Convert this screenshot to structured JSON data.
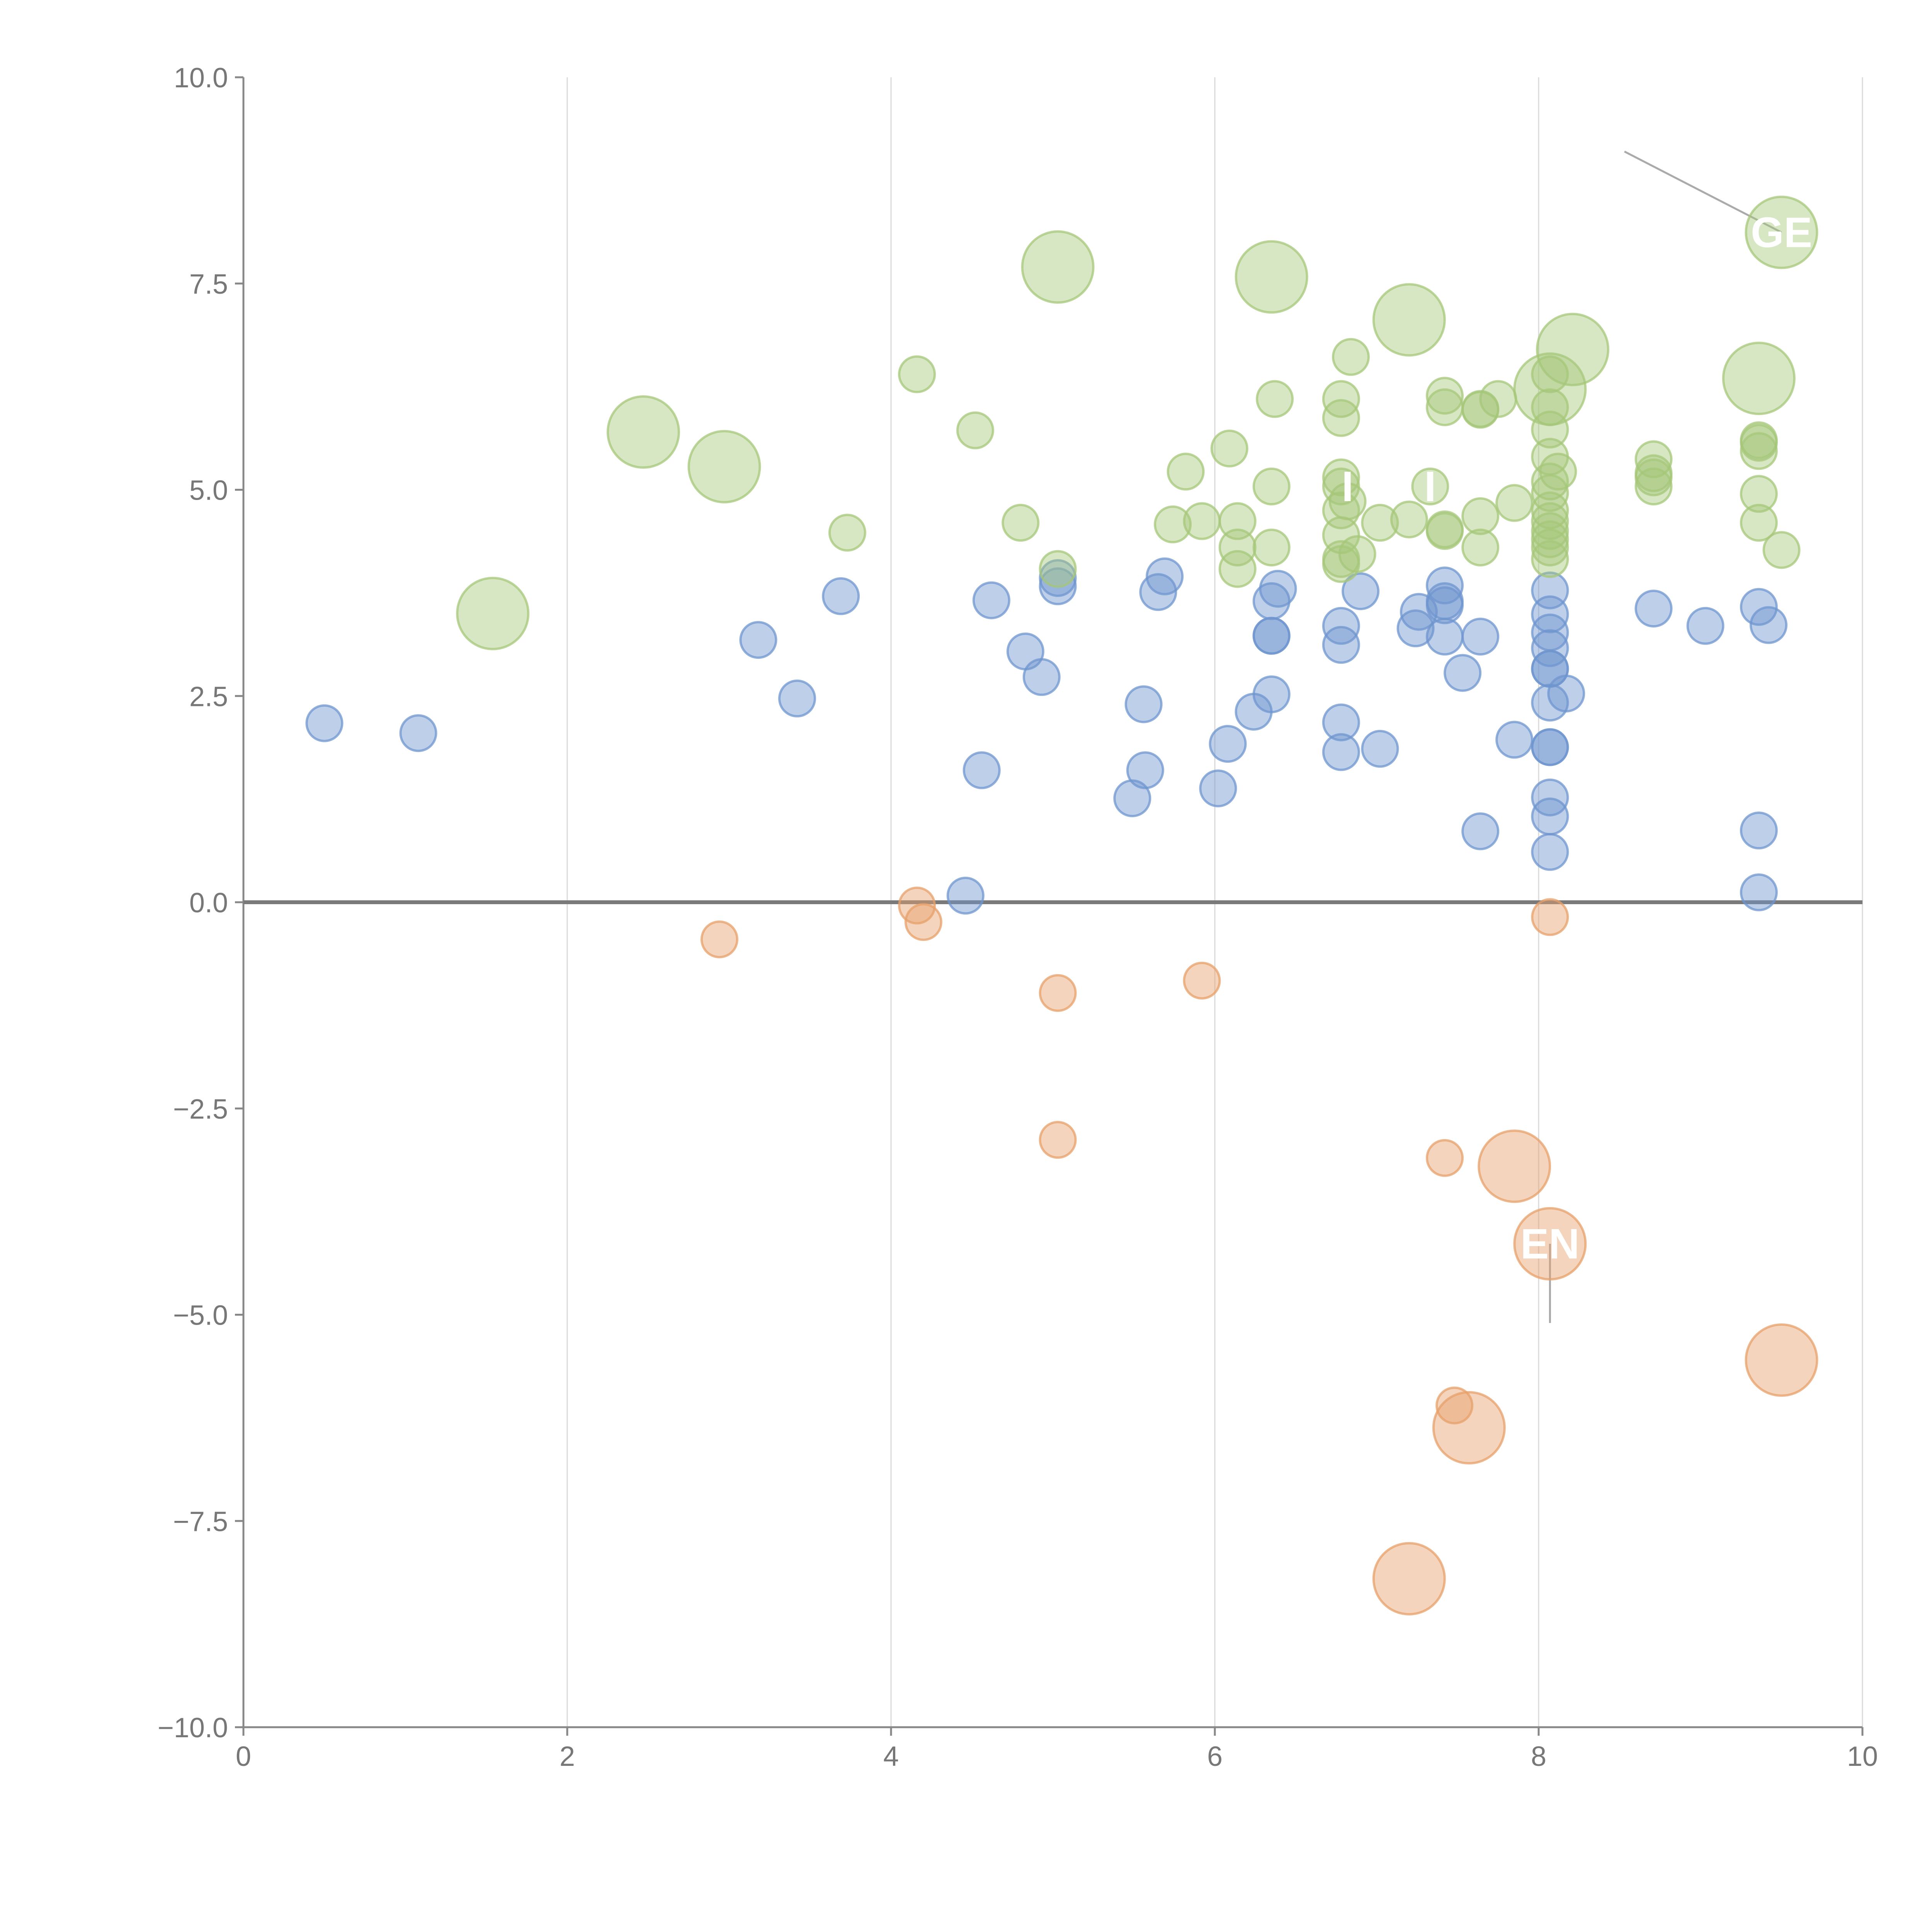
{
  "colors": {
    "blue": "#6f95cf",
    "green": "#a6c779",
    "orange": "#e7a06a",
    "grid": "#d9d9d9",
    "axis": "#888888"
  },
  "chart_data": {
    "type": "scatter",
    "title": "",
    "xlabel": "",
    "ylabel": "",
    "xlim": [
      0,
      10
    ],
    "ylim": [
      -10,
      10
    ],
    "x_ticks": [
      0,
      2,
      4,
      6,
      8,
      10
    ],
    "x_tick_labels": [
      "0",
      "2",
      "4",
      "6",
      "8",
      "10"
    ],
    "y_ticks": [
      10,
      7.5,
      5,
      2.5,
      0,
      -2.5,
      -5,
      -7.5,
      -10
    ],
    "y_tick_labels": [
      "10.0",
      "7.5",
      "5.0",
      "2.5",
      "0.0",
      "−2.5",
      "−5.0",
      "−7.5",
      "−10.0"
    ],
    "grid": "vertical",
    "zero_line": 0,
    "series": [
      {
        "name": "blue",
        "color": "#6f95cf",
        "points": [
          {
            "x": 0.5,
            "y": 2.17,
            "r": 1
          },
          {
            "x": 1.08,
            "y": 2.05,
            "r": 1
          },
          {
            "x": 3.18,
            "y": 3.18,
            "r": 1
          },
          {
            "x": 3.42,
            "y": 2.47,
            "r": 1
          },
          {
            "x": 3.69,
            "y": 3.71,
            "r": 1
          },
          {
            "x": 4.46,
            "y": 0.08,
            "r": 1
          },
          {
            "x": 4.56,
            "y": 1.6,
            "r": 1
          },
          {
            "x": 4.62,
            "y": 3.66,
            "r": 1
          },
          {
            "x": 4.83,
            "y": 3.04,
            "r": 1
          },
          {
            "x": 4.93,
            "y": 2.73,
            "r": 1
          },
          {
            "x": 5.03,
            "y": 3.83,
            "r": 1
          },
          {
            "x": 5.03,
            "y": 3.93,
            "r": 1
          },
          {
            "x": 5.49,
            "y": 1.26,
            "r": 1
          },
          {
            "x": 5.56,
            "y": 2.4,
            "r": 1
          },
          {
            "x": 5.57,
            "y": 1.6,
            "r": 1
          },
          {
            "x": 5.65,
            "y": 3.76,
            "r": 1
          },
          {
            "x": 5.69,
            "y": 3.95,
            "r": 1
          },
          {
            "x": 6.02,
            "y": 1.38,
            "r": 1
          },
          {
            "x": 6.08,
            "y": 1.92,
            "r": 1
          },
          {
            "x": 6.24,
            "y": 2.31,
            "r": 1
          },
          {
            "x": 6.35,
            "y": 2.52,
            "r": 1
          },
          {
            "x": 6.35,
            "y": 3.23,
            "r": 1
          },
          {
            "x": 6.35,
            "y": 3.23,
            "r": 1
          },
          {
            "x": 6.35,
            "y": 3.65,
            "r": 1
          },
          {
            "x": 6.39,
            "y": 3.8,
            "r": 1
          },
          {
            "x": 6.78,
            "y": 1.82,
            "r": 1
          },
          {
            "x": 6.78,
            "y": 2.18,
            "r": 1
          },
          {
            "x": 6.78,
            "y": 3.12,
            "r": 1
          },
          {
            "x": 6.78,
            "y": 3.35,
            "r": 1
          },
          {
            "x": 6.9,
            "y": 3.77,
            "r": 1
          },
          {
            "x": 7.02,
            "y": 1.86,
            "r": 1
          },
          {
            "x": 7.24,
            "y": 3.32,
            "r": 1
          },
          {
            "x": 7.26,
            "y": 3.52,
            "r": 1
          },
          {
            "x": 7.42,
            "y": 3.22,
            "r": 1
          },
          {
            "x": 7.42,
            "y": 3.6,
            "r": 1
          },
          {
            "x": 7.42,
            "y": 3.65,
            "r": 1
          },
          {
            "x": 7.42,
            "y": 3.84,
            "r": 1
          },
          {
            "x": 7.53,
            "y": 2.78,
            "r": 1
          },
          {
            "x": 7.64,
            "y": 0.86,
            "r": 1
          },
          {
            "x": 7.64,
            "y": 3.22,
            "r": 1
          },
          {
            "x": 7.85,
            "y": 1.97,
            "r": 1
          },
          {
            "x": 8.07,
            "y": 0.61,
            "r": 1
          },
          {
            "x": 8.07,
            "y": 1.04,
            "r": 1
          },
          {
            "x": 8.07,
            "y": 1.27,
            "r": 1
          },
          {
            "x": 8.07,
            "y": 1.88,
            "r": 1
          },
          {
            "x": 8.07,
            "y": 1.88,
            "r": 1
          },
          {
            "x": 8.07,
            "y": 2.42,
            "r": 1
          },
          {
            "x": 8.07,
            "y": 2.83,
            "r": 1
          },
          {
            "x": 8.07,
            "y": 2.83,
            "r": 1
          },
          {
            "x": 8.07,
            "y": 3.08,
            "r": 1
          },
          {
            "x": 8.07,
            "y": 3.27,
            "r": 1
          },
          {
            "x": 8.07,
            "y": 3.49,
            "r": 1
          },
          {
            "x": 8.07,
            "y": 3.78,
            "r": 1
          },
          {
            "x": 8.17,
            "y": 2.53,
            "r": 1
          },
          {
            "x": 8.71,
            "y": 3.56,
            "r": 1
          },
          {
            "x": 9.03,
            "y": 3.35,
            "r": 1
          },
          {
            "x": 9.36,
            "y": 0.12,
            "r": 1
          },
          {
            "x": 9.36,
            "y": 0.87,
            "r": 1
          },
          {
            "x": 9.36,
            "y": 3.58,
            "r": 1
          },
          {
            "x": 9.42,
            "y": 3.36,
            "r": 1
          }
        ]
      },
      {
        "name": "green",
        "color": "#a6c779",
        "points": [
          {
            "x": 1.54,
            "y": 3.5,
            "r": 2
          },
          {
            "x": 2.47,
            "y": 5.7,
            "r": 2
          },
          {
            "x": 2.97,
            "y": 5.28,
            "r": 2
          },
          {
            "x": 3.73,
            "y": 4.48,
            "r": 1
          },
          {
            "x": 4.16,
            "y": 6.4,
            "r": 1
          },
          {
            "x": 4.52,
            "y": 5.72,
            "r": 1
          },
          {
            "x": 4.8,
            "y": 4.6,
            "r": 1
          },
          {
            "x": 5.03,
            "y": 7.7,
            "r": 2
          },
          {
            "x": 5.03,
            "y": 4.04,
            "r": 1
          },
          {
            "x": 5.74,
            "y": 4.58,
            "r": 1
          },
          {
            "x": 5.82,
            "y": 5.22,
            "r": 1
          },
          {
            "x": 5.92,
            "y": 4.62,
            "r": 1
          },
          {
            "x": 6.09,
            "y": 5.5,
            "r": 1
          },
          {
            "x": 6.14,
            "y": 4.04,
            "r": 1
          },
          {
            "x": 6.14,
            "y": 4.3,
            "r": 1
          },
          {
            "x": 6.14,
            "y": 4.62,
            "r": 1
          },
          {
            "x": 6.35,
            "y": 7.58,
            "r": 2
          },
          {
            "x": 6.35,
            "y": 4.3,
            "r": 1
          },
          {
            "x": 6.35,
            "y": 5.04,
            "r": 1
          },
          {
            "x": 6.37,
            "y": 6.1,
            "r": 1
          },
          {
            "x": 6.78,
            "y": 4.1,
            "r": 1
          },
          {
            "x": 6.78,
            "y": 4.16,
            "r": 1
          },
          {
            "x": 6.78,
            "y": 4.45,
            "r": 1
          },
          {
            "x": 6.78,
            "y": 4.75,
            "r": 1
          },
          {
            "x": 6.78,
            "y": 5.04,
            "r": 1
          },
          {
            "x": 6.78,
            "y": 5.15,
            "r": 1
          },
          {
            "x": 6.78,
            "y": 5.87,
            "r": 1
          },
          {
            "x": 6.78,
            "y": 6.1,
            "r": 1
          },
          {
            "x": 6.82,
            "y": 4.86,
            "r": 1
          },
          {
            "x": 6.84,
            "y": 6.61,
            "r": 1
          },
          {
            "x": 6.88,
            "y": 4.22,
            "r": 1
          },
          {
            "x": 7.02,
            "y": 4.6,
            "r": 1
          },
          {
            "x": 7.2,
            "y": 7.06,
            "r": 2
          },
          {
            "x": 7.2,
            "y": 4.64,
            "r": 1
          },
          {
            "x": 7.33,
            "y": 5.04,
            "r": 1
          },
          {
            "x": 7.42,
            "y": 4.5,
            "r": 1
          },
          {
            "x": 7.42,
            "y": 4.52,
            "r": 1
          },
          {
            "x": 7.42,
            "y": 6.0,
            "r": 1
          },
          {
            "x": 7.42,
            "y": 6.14,
            "r": 1
          },
          {
            "x": 7.64,
            "y": 4.3,
            "r": 1
          },
          {
            "x": 7.64,
            "y": 4.68,
            "r": 1
          },
          {
            "x": 7.64,
            "y": 5.97,
            "r": 1
          },
          {
            "x": 7.64,
            "y": 5.98,
            "r": 1
          },
          {
            "x": 7.75,
            "y": 6.1,
            "r": 1
          },
          {
            "x": 7.85,
            "y": 4.84,
            "r": 1
          },
          {
            "x": 8.07,
            "y": 4.16,
            "r": 1
          },
          {
            "x": 8.07,
            "y": 4.3,
            "r": 1
          },
          {
            "x": 8.07,
            "y": 4.4,
            "r": 1
          },
          {
            "x": 8.07,
            "y": 4.5,
            "r": 1
          },
          {
            "x": 8.07,
            "y": 4.62,
            "r": 1
          },
          {
            "x": 8.07,
            "y": 4.75,
            "r": 1
          },
          {
            "x": 8.07,
            "y": 4.96,
            "r": 1
          },
          {
            "x": 8.07,
            "y": 5.1,
            "r": 1
          },
          {
            "x": 8.07,
            "y": 5.4,
            "r": 1
          },
          {
            "x": 8.07,
            "y": 5.73,
            "r": 1
          },
          {
            "x": 8.07,
            "y": 6.0,
            "r": 1
          },
          {
            "x": 8.07,
            "y": 6.22,
            "r": 2
          },
          {
            "x": 8.07,
            "y": 6.4,
            "r": 1
          },
          {
            "x": 8.12,
            "y": 5.22,
            "r": 1
          },
          {
            "x": 8.21,
            "y": 6.7,
            "r": 2
          },
          {
            "x": 8.71,
            "y": 5.04,
            "r": 1
          },
          {
            "x": 8.71,
            "y": 5.15,
            "r": 1
          },
          {
            "x": 8.71,
            "y": 5.2,
            "r": 1
          },
          {
            "x": 8.71,
            "y": 5.37,
            "r": 1
          },
          {
            "x": 9.36,
            "y": 4.6,
            "r": 1
          },
          {
            "x": 9.36,
            "y": 4.95,
            "r": 1
          },
          {
            "x": 9.36,
            "y": 5.47,
            "r": 1
          },
          {
            "x": 9.36,
            "y": 5.57,
            "r": 1
          },
          {
            "x": 9.36,
            "y": 5.6,
            "r": 1
          },
          {
            "x": 9.36,
            "y": 6.35,
            "r": 2
          },
          {
            "x": 9.5,
            "y": 4.27,
            "r": 1
          },
          {
            "x": 9.5,
            "y": 8.12,
            "r": 2
          }
        ]
      },
      {
        "name": "orange",
        "color": "#e7a06a",
        "points": [
          {
            "x": 2.94,
            "y": -0.45,
            "r": 1
          },
          {
            "x": 4.16,
            "y": -0.04,
            "r": 1
          },
          {
            "x": 4.2,
            "y": -0.24,
            "r": 1
          },
          {
            "x": 5.03,
            "y": -1.1,
            "r": 1
          },
          {
            "x": 5.03,
            "y": -2.88,
            "r": 1
          },
          {
            "x": 5.92,
            "y": -0.95,
            "r": 1
          },
          {
            "x": 7.42,
            "y": -3.1,
            "r": 1
          },
          {
            "x": 7.48,
            "y": -6.1,
            "r": 1
          },
          {
            "x": 7.2,
            "y": -8.2,
            "r": 2
          },
          {
            "x": 7.57,
            "y": -6.37,
            "r": 2
          },
          {
            "x": 7.85,
            "y": -3.2,
            "r": 2
          },
          {
            "x": 8.07,
            "y": -0.18,
            "r": 1
          },
          {
            "x": 8.07,
            "y": -4.14,
            "r": 2
          },
          {
            "x": 9.5,
            "y": -5.55,
            "r": 2
          }
        ]
      }
    ],
    "annotations": [
      {
        "text": "GE",
        "x": 9.5,
        "y": 8.12,
        "leader_to": [
          8.53,
          9.1
        ],
        "leader_color": "#aaaaaa"
      },
      {
        "text": "EN",
        "x": 8.07,
        "y": -4.14,
        "leader_to": [
          8.07,
          -5.1
        ],
        "leader_color": "#aaaaaa"
      },
      {
        "text": "I",
        "x": 6.82,
        "y": 5.04,
        "leader_to": null,
        "leader_color": "#ffffff"
      },
      {
        "text": "I",
        "x": 7.33,
        "y": 5.04,
        "leader_to": null,
        "leader_color": "#ffffff"
      }
    ]
  }
}
